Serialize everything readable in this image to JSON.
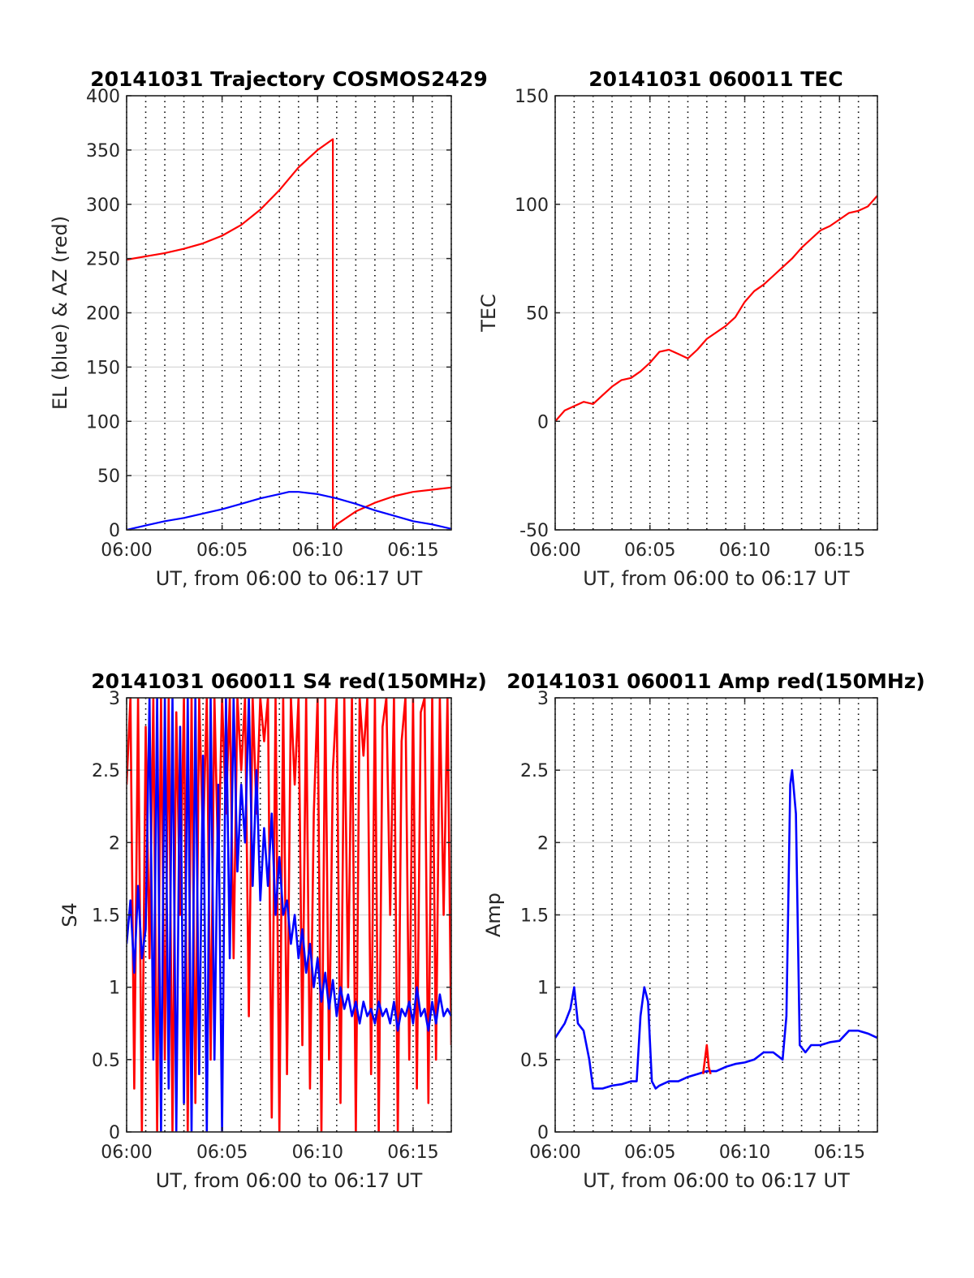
{
  "colors": {
    "az": "#ff0000",
    "el": "#0000ff",
    "tec": "#ff0000",
    "red": "#ff0000",
    "blue": "#0000ff"
  },
  "chart_data": [
    {
      "type": "line",
      "title": "20141031 Trajectory COSMOS2429",
      "xlabel": "UT, from 06:00 to 06:17 UT",
      "ylabel": "EL (blue) & AZ (red)",
      "xlim": [
        0,
        17
      ],
      "ylim": [
        0,
        400
      ],
      "yticks": [
        0,
        50,
        100,
        150,
        200,
        250,
        300,
        350,
        400
      ],
      "ytick_labels": [
        "0",
        "50",
        "100",
        "150",
        "200",
        "250",
        "300",
        "350",
        "400"
      ],
      "xticks": [
        0,
        5,
        10,
        15
      ],
      "xtick_labels": [
        "06:00",
        "06:05",
        "06:10",
        "06:15"
      ],
      "vertical_dotted_grid_step": 1,
      "horizontal_grid": true,
      "series": [
        {
          "color": "red",
          "x": [
            0,
            1,
            2,
            3,
            4,
            5,
            6,
            7,
            8,
            9,
            10,
            10.8,
            10.8,
            11,
            12,
            13,
            14,
            15,
            16,
            17
          ],
          "y": [
            249,
            252,
            255,
            259,
            264,
            271,
            281,
            295,
            313,
            334,
            350,
            360,
            0,
            5,
            17,
            25,
            31,
            35,
            37,
            39
          ]
        },
        {
          "color": "blue",
          "x": [
            0,
            1,
            2,
            3,
            4,
            5,
            6,
            7,
            8,
            8.5,
            9,
            10,
            11,
            12,
            13,
            14,
            15,
            16,
            17
          ],
          "y": [
            0,
            4,
            8,
            11,
            15,
            19,
            24,
            29,
            33,
            35,
            35,
            33,
            29,
            24,
            18,
            13,
            8,
            5,
            1
          ]
        }
      ]
    },
    {
      "type": "line",
      "title": "20141031 060011 TEC",
      "xlabel": "UT, from 06:00 to 06:17 UT",
      "ylabel": "TEC",
      "xlim": [
        0,
        17
      ],
      "ylim": [
        -50,
        150
      ],
      "yticks": [
        -50,
        0,
        50,
        100,
        150
      ],
      "ytick_labels": [
        "-50",
        "0",
        "50",
        "100",
        "150"
      ],
      "xticks": [
        0,
        5,
        10,
        15
      ],
      "xtick_labels": [
        "06:00",
        "06:05",
        "06:10",
        "06:15"
      ],
      "vertical_dotted_grid_step": 1,
      "horizontal_grid": true,
      "series": [
        {
          "color": "red",
          "x": [
            0,
            0.5,
            1,
            1.5,
            2,
            2.5,
            3,
            3.5,
            4,
            4.5,
            5,
            5.5,
            6,
            6.5,
            7,
            7.5,
            8,
            8.5,
            9,
            9.5,
            10,
            10.5,
            11,
            11.5,
            12,
            12.5,
            13,
            13.5,
            14,
            14.5,
            15,
            15.5,
            16,
            16.5,
            17
          ],
          "y": [
            0,
            5,
            7,
            9,
            8,
            12,
            16,
            19,
            20,
            23,
            27,
            32,
            33,
            31,
            29,
            33,
            38,
            41,
            44,
            48,
            55,
            60,
            63,
            67,
            71,
            75,
            80,
            84,
            88,
            90,
            93,
            96,
            97,
            99,
            104
          ]
        }
      ]
    },
    {
      "type": "line",
      "title": "20141031 060011 S4 red(150MHz)",
      "xlabel": "UT, from 06:00 to 06:17 UT",
      "ylabel": "S4",
      "xlim": [
        0,
        17
      ],
      "ylim": [
        0,
        3
      ],
      "yticks": [
        0,
        0.5,
        1,
        1.5,
        2,
        2.5,
        3
      ],
      "ytick_labels": [
        "0",
        "0.5",
        "1",
        "1.5",
        "2",
        "2.5",
        "3"
      ],
      "xticks": [
        0,
        5,
        10,
        15
      ],
      "xtick_labels": [
        "06:00",
        "06:05",
        "06:10",
        "06:15"
      ],
      "vertical_dotted_grid_step": 1,
      "horizontal_grid": true,
      "series": [
        {
          "color": "red",
          "x": [
            0,
            0.2,
            0.4,
            0.6,
            0.8,
            1,
            1.2,
            1.4,
            1.6,
            1.8,
            2,
            2.2,
            2.4,
            2.6,
            2.8,
            3,
            3.2,
            3.4,
            3.6,
            3.8,
            4,
            4.2,
            4.4,
            4.6,
            4.8,
            5,
            5.2,
            5.4,
            5.6,
            5.8,
            6,
            6.2,
            6.4,
            6.6,
            6.8,
            7,
            7.2,
            7.4,
            7.6,
            7.8,
            8,
            8.2,
            8.4,
            8.6,
            8.8,
            9,
            9.2,
            9.4,
            9.6,
            9.8,
            10,
            10.2,
            10.4,
            10.6,
            10.8,
            11,
            11.2,
            11.4,
            11.6,
            11.8,
            12,
            12.2,
            12.4,
            12.6,
            12.8,
            13,
            13.2,
            13.4,
            13.6,
            13.8,
            14,
            14.2,
            14.4,
            14.6,
            14.8,
            15,
            15.2,
            15.4,
            15.6,
            15.8,
            16,
            16.2,
            16.4,
            16.6,
            16.8,
            17
          ],
          "y": [
            2.4,
            3,
            0.3,
            3,
            0,
            2.8,
            1.2,
            3,
            0,
            3,
            0.5,
            3,
            0,
            2.9,
            1.5,
            3,
            0,
            3,
            0.2,
            3,
            2,
            3,
            0.5,
            3,
            1.8,
            3,
            2.2,
            3,
            1.2,
            3,
            2.5,
            3,
            0.8,
            3,
            2.2,
            3,
            2.7,
            3,
            0.1,
            3,
            0,
            3,
            0.4,
            3,
            2.4,
            3,
            0.6,
            3,
            0.3,
            2.2,
            3,
            0,
            3,
            0.5,
            2.5,
            3,
            0.2,
            3,
            1,
            3,
            0,
            3,
            2.6,
            3,
            0.4,
            3,
            0,
            2.8,
            3,
            1.5,
            3,
            0,
            2.7,
            3,
            0.5,
            3,
            0.3,
            2.9,
            3,
            0.2,
            3,
            0.5,
            3,
            1.5,
            3,
            0.6
          ]
        },
        {
          "color": "blue",
          "x": [
            0,
            0.2,
            0.4,
            0.6,
            0.8,
            1,
            1.2,
            1.4,
            1.6,
            1.8,
            2,
            2.2,
            2.4,
            2.6,
            2.8,
            3,
            3.2,
            3.4,
            3.6,
            3.8,
            4,
            4.2,
            4.4,
            4.6,
            4.8,
            5,
            5.2,
            5.4,
            5.6,
            5.8,
            6,
            6.2,
            6.4,
            6.6,
            6.8,
            7,
            7.2,
            7.4,
            7.6,
            7.8,
            8,
            8.2,
            8.4,
            8.6,
            8.8,
            9,
            9.2,
            9.4,
            9.6,
            9.8,
            10,
            10.2,
            10.4,
            10.6,
            10.8,
            11,
            11.2,
            11.4,
            11.6,
            11.8,
            12,
            12.2,
            12.4,
            12.6,
            12.8,
            13,
            13.2,
            13.4,
            13.6,
            13.8,
            14,
            14.2,
            14.4,
            14.6,
            14.8,
            15,
            15.2,
            15.4,
            15.6,
            15.8,
            16,
            16.2,
            16.4,
            16.6,
            16.8,
            17
          ],
          "y": [
            1.3,
            1.6,
            1.1,
            1.7,
            1.2,
            1.4,
            3,
            0.5,
            3,
            0,
            3,
            0.3,
            3,
            0,
            2.8,
            0.2,
            3,
            0,
            3,
            0.4,
            2.6,
            0,
            3,
            0.5,
            2.4,
            0,
            3,
            1.2,
            3,
            1.8,
            2.4,
            2,
            3,
            1.7,
            2.5,
            1.6,
            2.1,
            1.7,
            2.2,
            1.5,
            1.9,
            1.5,
            1.6,
            1.3,
            1.5,
            1.2,
            1.4,
            1.1,
            1.3,
            1.0,
            1.2,
            0.9,
            1.1,
            0.85,
            1.05,
            0.8,
            1.0,
            0.85,
            0.95,
            0.8,
            0.9,
            0.75,
            0.9,
            0.8,
            0.85,
            0.75,
            0.9,
            0.8,
            0.85,
            0.75,
            0.9,
            0.7,
            0.85,
            0.8,
            0.9,
            0.75,
            1.0,
            0.8,
            0.85,
            0.7,
            0.9,
            0.75,
            0.95,
            0.8,
            0.85,
            0.8
          ]
        }
      ]
    },
    {
      "type": "line",
      "title": "20141031 060011 Amp red(150MHz)",
      "xlabel": "UT, from 06:00 to 06:17 UT",
      "ylabel": "Amp",
      "xlim": [
        0,
        17
      ],
      "ylim": [
        0,
        3
      ],
      "yticks": [
        0,
        0.5,
        1,
        1.5,
        2,
        2.5,
        3
      ],
      "ytick_labels": [
        "0",
        "0.5",
        "1",
        "1.5",
        "2",
        "2.5",
        "3"
      ],
      "xticks": [
        0,
        5,
        10,
        15
      ],
      "xtick_labels": [
        "06:00",
        "06:05",
        "06:10",
        "06:15"
      ],
      "vertical_dotted_grid_step": 1,
      "horizontal_grid": true,
      "series": [
        {
          "color": "blue",
          "x": [
            0,
            0.5,
            0.8,
            1,
            1.2,
            1.5,
            1.8,
            2,
            2.5,
            3,
            3.5,
            4,
            4.3,
            4.5,
            4.7,
            4.9,
            5.1,
            5.3,
            5.5,
            6,
            6.5,
            7,
            7.5,
            8,
            8.5,
            9,
            9.5,
            10,
            10.5,
            11,
            11.5,
            12,
            12.2,
            12.4,
            12.5,
            12.7,
            12.9,
            13.2,
            13.5,
            14,
            14.5,
            15,
            15.5,
            16,
            16.5,
            17
          ],
          "y": [
            0.65,
            0.75,
            0.85,
            1.0,
            0.75,
            0.7,
            0.5,
            0.3,
            0.3,
            0.32,
            0.33,
            0.35,
            0.35,
            0.8,
            1.0,
            0.9,
            0.35,
            0.3,
            0.32,
            0.35,
            0.35,
            0.38,
            0.4,
            0.42,
            0.42,
            0.45,
            0.47,
            0.48,
            0.5,
            0.55,
            0.55,
            0.5,
            0.8,
            2.4,
            2.5,
            2.2,
            0.6,
            0.55,
            0.6,
            0.6,
            0.62,
            0.63,
            0.7,
            0.7,
            0.68,
            0.65
          ]
        },
        {
          "color": "red",
          "x": [
            7.8,
            7.9,
            8.0,
            8.1,
            8.2
          ],
          "y": [
            0.4,
            0.5,
            0.6,
            0.45,
            0.4
          ]
        }
      ]
    }
  ]
}
